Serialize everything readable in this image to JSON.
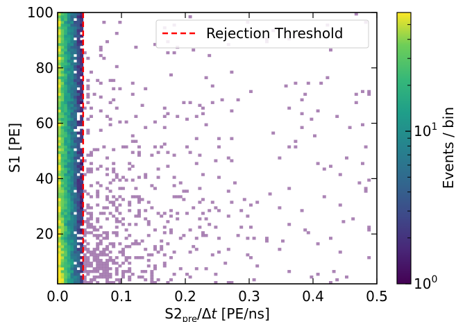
{
  "chart_data": {
    "type": "heatmap",
    "title": "",
    "xlabel": {
      "base": "S2",
      "subscript": "pre",
      "slash": "/Δ",
      "italic": "t",
      "unit": " [PE/ns]"
    },
    "ylabel": "S1 [PE]",
    "xlim": [
      0.0,
      0.5
    ],
    "ylim": [
      2,
      100
    ],
    "x_ticks": [
      {
        "value": 0.0,
        "label": "0.0"
      },
      {
        "value": 0.1,
        "label": "0.1"
      },
      {
        "value": 0.2,
        "label": "0.2"
      },
      {
        "value": 0.3,
        "label": "0.3"
      },
      {
        "value": 0.4,
        "label": "0.4"
      },
      {
        "value": 0.5,
        "label": "0.5"
      }
    ],
    "y_ticks": [
      {
        "value": 20,
        "label": "20"
      },
      {
        "value": 40,
        "label": "40"
      },
      {
        "value": 60,
        "label": "60"
      },
      {
        "value": 80,
        "label": "80"
      },
      {
        "value": 100,
        "label": "100"
      }
    ],
    "bins": {
      "x_bin_width": 0.005,
      "y_bin_width": 1
    },
    "colorbar": {
      "label": "Events / bin",
      "scale": "log",
      "colormap": "viridis",
      "min": 1,
      "max": 60,
      "ticks": [
        {
          "value": 1,
          "base": "10",
          "exp": "0"
        },
        {
          "value": 10,
          "base": "10",
          "exp": "1"
        }
      ]
    },
    "threshold": {
      "name": "Rejection Threshold",
      "x": 0.04,
      "color": "#ff0000",
      "style": "dashed"
    },
    "legend": {
      "position": "top-right"
    },
    "rejected_region_color": "#9c6fa8",
    "grid": false
  }
}
